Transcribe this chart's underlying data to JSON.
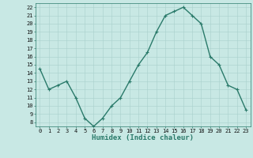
{
  "x": [
    0,
    1,
    2,
    3,
    4,
    5,
    6,
    7,
    8,
    9,
    10,
    11,
    12,
    13,
    14,
    15,
    16,
    17,
    18,
    19,
    20,
    21,
    22,
    23
  ],
  "y": [
    14.5,
    12.0,
    12.5,
    13.0,
    11.0,
    8.5,
    7.5,
    8.5,
    10.0,
    11.0,
    13.0,
    15.0,
    16.5,
    19.0,
    21.0,
    21.5,
    22.0,
    21.0,
    20.0,
    16.0,
    15.0,
    12.5,
    12.0,
    9.5
  ],
  "xlabel": "Humidex (Indice chaleur)",
  "xlim": [
    -0.5,
    23.5
  ],
  "ylim": [
    7.5,
    22.5
  ],
  "yticks": [
    8,
    9,
    10,
    11,
    12,
    13,
    14,
    15,
    16,
    17,
    18,
    19,
    20,
    21,
    22
  ],
  "xticks": [
    0,
    1,
    2,
    3,
    4,
    5,
    6,
    7,
    8,
    9,
    10,
    11,
    12,
    13,
    14,
    15,
    16,
    17,
    18,
    19,
    20,
    21,
    22,
    23
  ],
  "line_color": "#2a7a6a",
  "marker": "+",
  "bg_color": "#c8e8e4",
  "grid_color": "#a8d0cc",
  "tick_label_fontsize": 5.0,
  "xlabel_fontsize": 6.5,
  "line_width": 1.0,
  "marker_size": 3.5,
  "marker_edge_width": 0.8
}
